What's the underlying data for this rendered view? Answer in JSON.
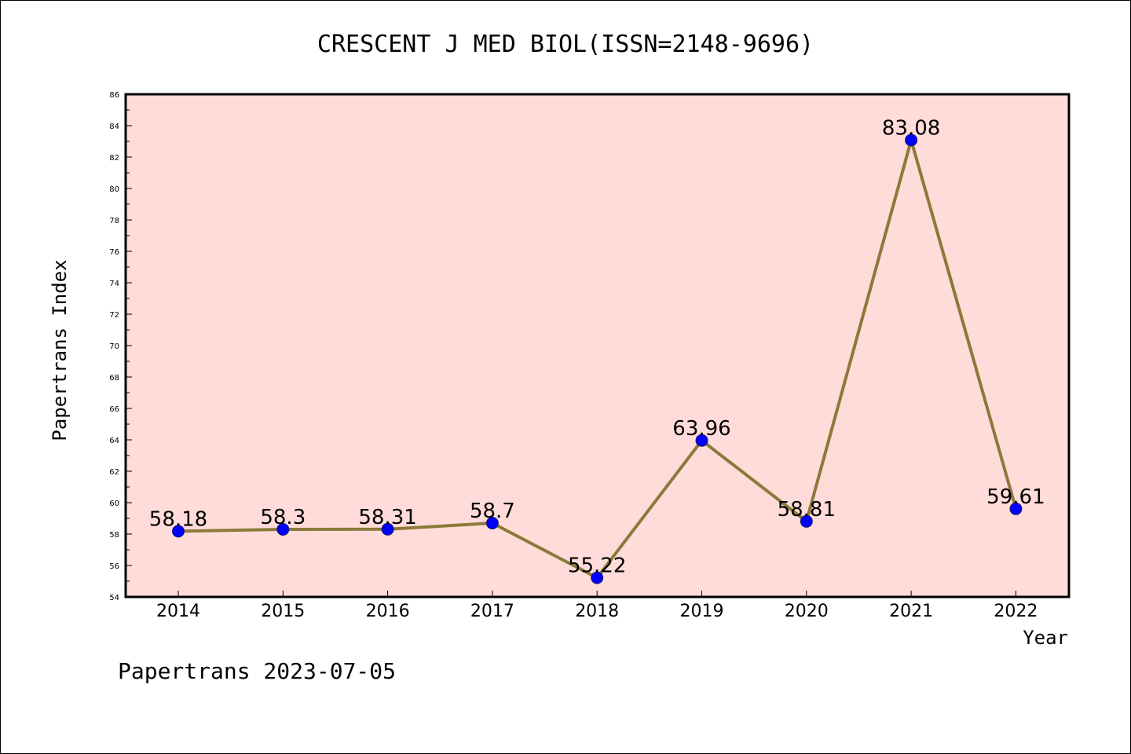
{
  "chart_data": {
    "type": "line",
    "title": "CRESCENT J MED BIOL(ISSN=2148-9696)",
    "xlabel": "Year",
    "ylabel": "Papertrans Index",
    "categories": [
      "2014",
      "2015",
      "2016",
      "2017",
      "2018",
      "2019",
      "2020",
      "2021",
      "2022"
    ],
    "values": [
      58.18,
      58.3,
      58.31,
      58.7,
      55.22,
      63.96,
      58.81,
      83.08,
      59.61
    ],
    "data_labels": [
      "58.18",
      "58.3",
      "58.31",
      "58.7",
      "55.22",
      "63.96",
      "58.81",
      "83.08",
      "59.61"
    ],
    "ylim": [
      54,
      86
    ],
    "yticks": [
      54,
      56,
      58,
      60,
      62,
      64,
      66,
      68,
      70,
      72,
      74,
      76,
      78,
      80,
      82,
      84,
      86
    ],
    "footer": "Papertrans 2023-07-05",
    "colors": {
      "plot_background": "#ffdcd9",
      "line": "#8b7a3a",
      "marker": "#0000ff",
      "marker_edge": "#1a1a6e"
    }
  }
}
